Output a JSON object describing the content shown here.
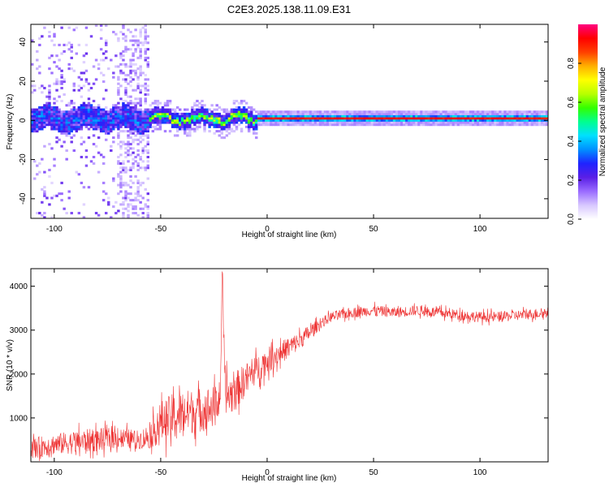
{
  "figure": {
    "title": "C2E3.2025.138.11.09.E31"
  },
  "chart_data": [
    {
      "type": "heatmap",
      "name": "spectrogram",
      "xlabel": "Height of straight line (km)",
      "ylabel": "Frequency (Hz)",
      "xlim": [
        -111,
        132
      ],
      "ylim": [
        -50,
        49
      ],
      "xticks": [
        -100,
        -50,
        0,
        50,
        100
      ],
      "xtick_labels": [
        "-100",
        "-50",
        "0",
        "50",
        "100"
      ],
      "yticks": [
        -40,
        -20,
        0,
        20,
        40
      ],
      "ytick_labels": [
        "-40",
        "-20",
        "0",
        "20",
        "40"
      ],
      "colorbar": {
        "label": "Normalized spectral amplitude",
        "range": [
          0,
          1
        ],
        "ticks": [
          0.0,
          0.2,
          0.4,
          0.6,
          0.8
        ],
        "tick_labels": [
          "0.0",
          "0.2",
          "0.4",
          "0.6",
          "0.8"
        ],
        "colors": [
          "#ffffff",
          "#d8c8ff",
          "#9a6bff",
          "#5a1fe6",
          "#1f23ff",
          "#0090ff",
          "#00e0ff",
          "#00ff90",
          "#33ff00",
          "#b8ff00",
          "#ffff00",
          "#ffb000",
          "#ff4000",
          "#ff0000",
          "#ff0080"
        ]
      },
      "regions": [
        {
          "x_range": [
            -111,
            -55
          ],
          "note": "broadband noise, amplitude 0.1-0.4"
        },
        {
          "x_range": [
            -55,
            -5
          ],
          "note": "wandering line near 0-3 Hz, amplitude 0.4-0.7"
        },
        {
          "x_range": [
            -5,
            132
          ],
          "note": "steady line at ~1 Hz, amplitude ~0.9"
        }
      ]
    },
    {
      "type": "line",
      "name": "snr",
      "xlabel": "Height of straight line (km)",
      "ylabel": "SNR (10 * v/v)",
      "color": "#ee3333",
      "xlim": [
        -111,
        132
      ],
      "ylim": [
        0,
        4400
      ],
      "xticks": [
        -100,
        -50,
        0,
        50,
        100
      ],
      "xtick_labels": [
        "-100",
        "-50",
        "0",
        "50",
        "100"
      ],
      "yticks": [
        1000,
        2000,
        3000,
        4000
      ],
      "ytick_labels": [
        "1000",
        "2000",
        "3000",
        "4000"
      ],
      "x": [
        -111,
        -100,
        -90,
        -80,
        -70,
        -60,
        -55,
        -50,
        -45,
        -40,
        -35,
        -30,
        -25,
        -22,
        -21,
        -20,
        -18,
        -15,
        -10,
        -5,
        0,
        5,
        10,
        15,
        20,
        25,
        30,
        35,
        40,
        50,
        60,
        70,
        80,
        90,
        100,
        110,
        120,
        132
      ],
      "y": [
        300,
        400,
        450,
        500,
        550,
        500,
        600,
        900,
        1000,
        1100,
        1150,
        1200,
        1250,
        1500,
        4400,
        1700,
        1500,
        1600,
        1900,
        2100,
        2300,
        2450,
        2600,
        2750,
        2950,
        3150,
        3300,
        3350,
        3400,
        3450,
        3400,
        3450,
        3400,
        3350,
        3300,
        3300,
        3350,
        3400
      ],
      "noise_envelope": [
        400,
        400,
        450,
        450,
        400,
        350,
        500,
        800,
        900,
        900,
        850,
        850,
        800,
        500,
        0,
        900,
        800,
        750,
        600,
        550,
        500,
        450,
        400,
        350,
        300,
        200,
        200,
        200,
        200,
        200,
        200,
        200,
        200,
        200,
        200,
        200,
        200,
        200
      ]
    }
  ]
}
